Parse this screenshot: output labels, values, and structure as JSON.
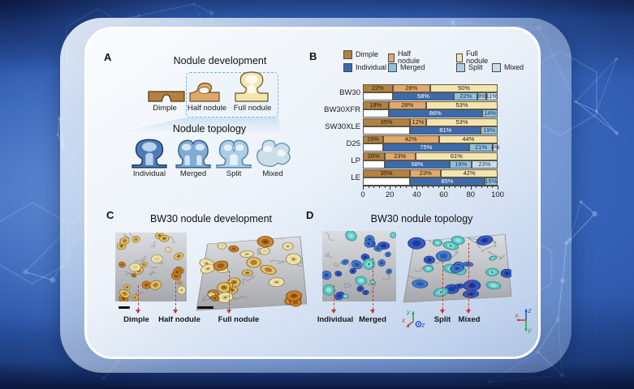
{
  "panels": {
    "a": {
      "letter": "A",
      "dev_title": "Nodule development",
      "dev_items": [
        "Dimple",
        "Half nodule",
        "Full nodule"
      ],
      "topo_title": "Nodule topology",
      "topo_items": [
        "Individual",
        "Merged",
        "Split",
        "Mixed"
      ]
    },
    "b": {
      "letter": "B"
    },
    "c": {
      "letter": "C",
      "title": "BW30 nodule development",
      "labels": [
        "Dimple",
        "Half nodule",
        "Full nodule"
      ],
      "palette": [
        [
          "#cf8125",
          "#9a5c12",
          "#6e4008"
        ],
        [
          "#f0e5ae",
          "#e3cf8a",
          "#8f7b42"
        ],
        [
          "#e8c36a",
          "#b07f2a",
          "#7d5c16"
        ]
      ]
    },
    "d": {
      "letter": "D",
      "title": "BW30 nodule topology",
      "labels": [
        "Individual",
        "Merged",
        "Split",
        "Mixed"
      ],
      "palette": [
        [
          "#2f55c4",
          "#1d3ca0",
          "#122a74"
        ],
        [
          "#3f79d0",
          "#2b5cae",
          "#1b3c7e"
        ],
        [
          "#54c4c4",
          "#93e2d8",
          "#1f7d80"
        ]
      ],
      "axes_front": {
        "up": "y",
        "left": "x",
        "out": "z"
      },
      "axes_side": {
        "up": "z",
        "left": "x",
        "down": "y"
      }
    }
  },
  "colors": {
    "background_blue": "#2a55a8",
    "card_border": "#ffffff",
    "marker_red": "#c03a30",
    "scale_bar": "#0a0a0a"
  },
  "chart_data": {
    "type": "bar",
    "orientation": "horizontal_stacked",
    "xlim": [
      0,
      100
    ],
    "xticks": [
      0,
      20,
      40,
      60,
      80,
      100
    ],
    "legend_position": "top",
    "series_colors": {
      "Dimple": "#B5813F",
      "Half nodule": "#E1A96C",
      "Full nodule": "#F3E5AE",
      "Individual": "#3B6BAE",
      "Merged": "#8FC0DF",
      "Split": "#ABCFE8",
      "Mixed": "#C8DEE9"
    },
    "legend_row1": [
      "Dimple",
      "Half nodule",
      "Full nodule"
    ],
    "legend_row2": [
      "Individual",
      "Merged",
      "Split",
      "Mixed"
    ],
    "categories": [
      "BW30",
      "BW30XFR",
      "SW30XLE",
      "D25",
      "LP",
      "LE"
    ],
    "rows": [
      {
        "label": "BW30",
        "development": [
          [
            "Dimple",
            22
          ],
          [
            "Half nodule",
            28
          ],
          [
            "Full nodule",
            50
          ]
        ],
        "topology": [
          [
            "Individual",
            58
          ],
          [
            "Merged",
            22
          ],
          [
            "Split",
            8
          ],
          [
            "Mixed",
            11
          ]
        ]
      },
      {
        "label": "BW30XFR",
        "development": [
          [
            "Dimple",
            19
          ],
          [
            "Half nodule",
            28
          ],
          [
            "Full nodule",
            53
          ]
        ],
        "topology": [
          [
            "Individual",
            86
          ],
          [
            "Merged",
            14
          ]
        ]
      },
      {
        "label": "SW30XLE",
        "development": [
          [
            "Dimple",
            35
          ],
          [
            "Half nodule",
            12
          ],
          [
            "Full nodule",
            53
          ]
        ],
        "topology": [
          [
            "Individual",
            81
          ],
          [
            "Merged",
            19
          ]
        ]
      },
      {
        "label": "D25",
        "development": [
          [
            "Dimple",
            15
          ],
          [
            "Half nodule",
            42
          ],
          [
            "Full nodule",
            44
          ]
        ],
        "topology": [
          [
            "Individual",
            75
          ],
          [
            "Merged",
            21
          ],
          [
            "Mixed",
            4
          ]
        ]
      },
      {
        "label": "LP",
        "development": [
          [
            "Dimple",
            16
          ],
          [
            "Half nodule",
            23
          ],
          [
            "Full nodule",
            61
          ]
        ],
        "topology": [
          [
            "Individual",
            58
          ],
          [
            "Merged",
            19
          ],
          [
            "Mixed",
            23
          ]
        ]
      },
      {
        "label": "LE",
        "development": [
          [
            "Dimple",
            35
          ],
          [
            "Half nodule",
            23
          ],
          [
            "Full nodule",
            42
          ]
        ],
        "topology": [
          [
            "Individual",
            85
          ],
          [
            "Merged",
            15
          ]
        ]
      }
    ]
  }
}
